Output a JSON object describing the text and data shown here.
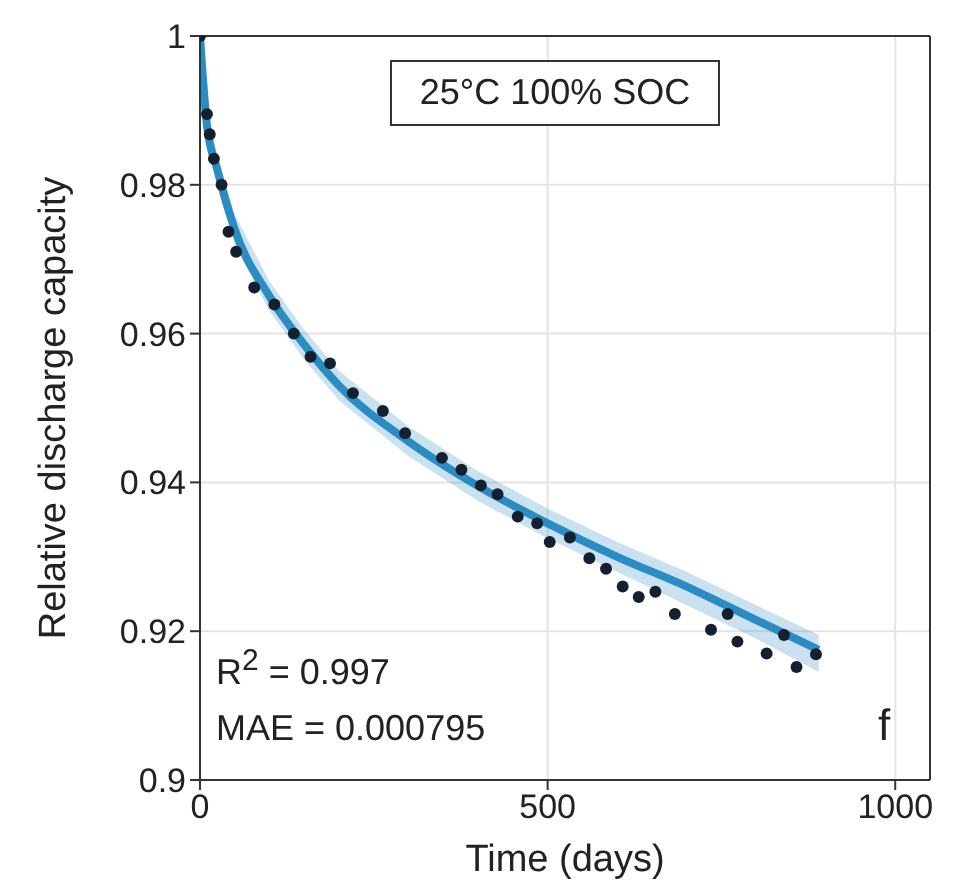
{
  "chart_data": {
    "type": "scatter",
    "xlabel": "Time (days)",
    "ylabel": "Relative discharge capacity",
    "xlim": [
      0,
      1050
    ],
    "xticks": [
      0,
      500,
      1000
    ],
    "ylim": [
      0.9,
      1
    ],
    "yticks": [
      0.9,
      0.92,
      0.94,
      0.96,
      0.98,
      1
    ],
    "grid": true,
    "annotations": [
      "25°C 100% SOC",
      "R$^{2}$ = 0.997",
      "MAE = 0.000795",
      "f"
    ],
    "series": [
      {
        "type": "line",
        "color": "#2b8cc4",
        "x": [
          0,
          10,
          25,
          50,
          100,
          150,
          200,
          300,
          400,
          500,
          600,
          700,
          800,
          890
        ],
        "values": [
          1,
          0.988,
          0.982,
          0.974,
          0.965,
          0.9585,
          0.953,
          0.9455,
          0.9395,
          0.9345,
          0.93,
          0.926,
          0.9215,
          0.9175
        ],
        "lower": [
          0.999,
          0.986,
          0.98,
          0.972,
          0.963,
          0.9565,
          0.951,
          0.9435,
          0.9375,
          0.9325,
          0.928,
          0.9235,
          0.919,
          0.9145
        ],
        "upper": [
          1,
          0.99,
          0.984,
          0.976,
          0.967,
          0.9605,
          0.955,
          0.9475,
          0.9415,
          0.9365,
          0.932,
          0.928,
          0.9235,
          0.9195
        ],
        "marker": "none"
      },
      {
        "color": "#14202e",
        "marker": "circle",
        "x": [
          0,
          10,
          14,
          20,
          31,
          41,
          52,
          78,
          107,
          135,
          159,
          187,
          220,
          263,
          295,
          348,
          376,
          404,
          428,
          457,
          485,
          503,
          532,
          560,
          584,
          608,
          631,
          655,
          683,
          735,
          759,
          773,
          815,
          840,
          858,
          886
        ],
        "values": [
          1,
          0.9895,
          0.9868,
          0.9835,
          0.98,
          0.9737,
          0.971,
          0.9662,
          0.9639,
          0.96,
          0.9569,
          0.956,
          0.952,
          0.9496,
          0.9466,
          0.9433,
          0.9417,
          0.9396,
          0.9384,
          0.9354,
          0.9345,
          0.932,
          0.9326,
          0.9298,
          0.9284,
          0.926,
          0.9246,
          0.9253,
          0.9223,
          0.9202,
          0.9223,
          0.9186,
          0.917,
          0.9195,
          0.9152,
          0.9169
        ]
      }
    ]
  }
}
